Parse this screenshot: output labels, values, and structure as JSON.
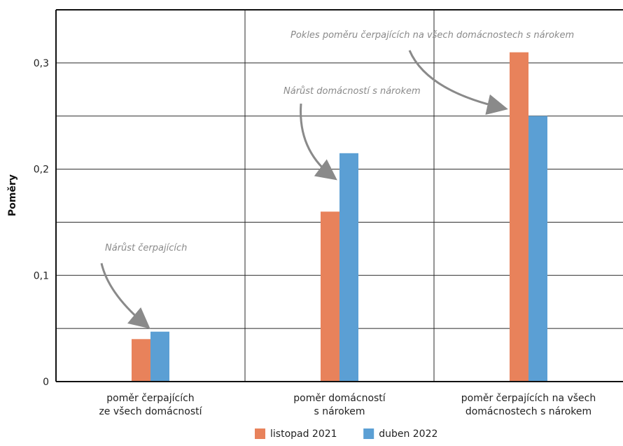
{
  "chart_data": {
    "type": "bar",
    "ylabel": "Poměry",
    "xlabel": "",
    "ylim": [
      0,
      0.35
    ],
    "yticks": [
      0,
      0.1,
      0.2,
      0.3
    ],
    "ytick_labels": [
      "0",
      "0,1",
      "0,2",
      "0,3"
    ],
    "grid": true,
    "legend_position": "bottom",
    "categories": [
      [
        "poměr čerpajících",
        "ze všech domácností"
      ],
      [
        "poměr domácností",
        "s nárokem"
      ],
      [
        "poměr čerpajících na všech",
        "domácnostech s nárokem"
      ]
    ],
    "series": [
      {
        "name": "listopad 2021",
        "color": "#e8825b",
        "values": [
          0.04,
          0.16,
          0.31
        ]
      },
      {
        "name": "duben 2022",
        "color": "#5b9fd4",
        "values": [
          0.047,
          0.215,
          0.25
        ]
      }
    ],
    "annotations": [
      {
        "text": "Nárůst čerpajících",
        "category": 0
      },
      {
        "text": "Nárůst domácností s nárokem",
        "category": 1
      },
      {
        "text": "Pokles poměru čerpajících na všech domácnostech s nárokem",
        "category": 2
      }
    ]
  }
}
